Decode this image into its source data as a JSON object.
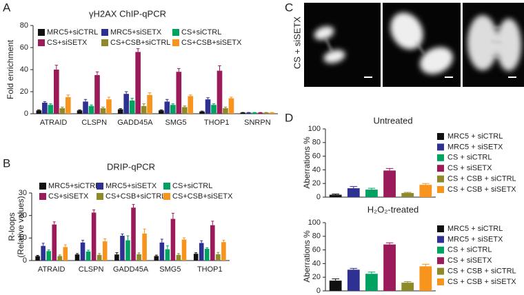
{
  "panels": {
    "a": "A",
    "b": "B",
    "c": "C",
    "d": "D"
  },
  "image_label": "CS + siSETX",
  "chart_data": [
    {
      "type": "bar",
      "title": "γH2AX ChIP-qPCR",
      "ylabel": [
        "Fold enrichment"
      ],
      "categories": [
        "ATRAID",
        "CLSPN",
        "GADD45A",
        "SMG5",
        "THOP1",
        "SNRPN"
      ],
      "ylim": [
        0,
        80
      ],
      "yticks": [
        0,
        20,
        40,
        60,
        80
      ],
      "series": [
        {
          "name": "MRC5+siCTRL",
          "color": "#111111",
          "values": [
            3,
            3,
            4,
            3,
            2,
            1
          ],
          "errors": [
            0.5,
            0.5,
            0.6,
            0.5,
            0.4,
            0.2
          ]
        },
        {
          "name": "MRC5+siSETX",
          "color": "#2e3192",
          "values": [
            10,
            11,
            18,
            11,
            13,
            1
          ],
          "errors": [
            1,
            2,
            2,
            2,
            1.5,
            0.2
          ]
        },
        {
          "name": "CS+siCTRL",
          "color": "#00a261",
          "values": [
            8,
            7,
            12,
            8,
            8,
            1
          ],
          "errors": [
            1,
            1,
            2,
            1,
            1,
            0.2
          ]
        },
        {
          "name": "CS+siSETX",
          "color": "#9b1b5a",
          "values": [
            40,
            35,
            56,
            38,
            39,
            1
          ],
          "errors": [
            4,
            3,
            3,
            3,
            4.5,
            0.2
          ]
        },
        {
          "name": "CS+CSB+siCTRL",
          "color": "#8e8a2a",
          "values": [
            5,
            5,
            7,
            6,
            5,
            1
          ],
          "errors": [
            1,
            1,
            2,
            1,
            1,
            0.2
          ]
        },
        {
          "name": "CS+CSB+siSETX",
          "color": "#f7941d",
          "values": [
            15,
            13,
            17,
            16,
            14,
            1
          ],
          "errors": [
            2,
            2,
            2,
            1,
            1,
            0.2
          ]
        }
      ]
    },
    {
      "type": "bar",
      "title": "DRIP-qPCR",
      "ylabel": [
        "R-loops",
        "(Relative values)"
      ],
      "categories": [
        "ATRAID",
        "CLSPN",
        "GADD45A",
        "SMG5",
        "THOP1"
      ],
      "ylim": [
        0,
        30
      ],
      "yticks": [
        0,
        10,
        20,
        30
      ],
      "series": [
        {
          "name": "MRC5+siCTRL",
          "color": "#111111",
          "values": [
            2,
            2.7,
            2.7,
            2,
            3
          ],
          "errors": [
            0.3,
            0.4,
            0.8,
            0.4,
            0.5
          ]
        },
        {
          "name": "MRC5+siSETX",
          "color": "#2e3192",
          "values": [
            6.5,
            8,
            11,
            8,
            7.8
          ],
          "errors": [
            1.2,
            1,
            0.8,
            1.5,
            1
          ]
        },
        {
          "name": "CS+siCTRL",
          "color": "#00a261",
          "values": [
            4.2,
            4,
            9,
            5,
            5.2
          ],
          "errors": [
            0.5,
            0.6,
            2,
            1.5,
            0.5
          ]
        },
        {
          "name": "CS+siSETX",
          "color": "#9b1b5a",
          "values": [
            16,
            21.3,
            23.5,
            18.5,
            15.7
          ],
          "errors": [
            1.2,
            1.2,
            1.4,
            2.5,
            1.8
          ]
        },
        {
          "name": "CS+CSB+siCTRL",
          "color": "#8e8a2a",
          "values": [
            2,
            2.5,
            2.8,
            2.5,
            2.8
          ],
          "errors": [
            0.5,
            0.6,
            0.6,
            0.6,
            0.8
          ]
        },
        {
          "name": "CS+CSB+siSETX",
          "color": "#f7941d",
          "values": [
            6,
            8.5,
            12,
            9.3,
            8.2
          ],
          "errors": [
            1,
            1.2,
            2,
            0.8,
            0.8
          ]
        }
      ]
    },
    {
      "type": "bar",
      "title": "Untreated",
      "ylabel": [
        "Aberrations %"
      ],
      "categories": [
        null
      ],
      "ylim": [
        0,
        100
      ],
      "yticks": [
        0,
        20,
        40,
        60,
        80,
        100
      ],
      "series": [
        {
          "name": "MRC5 + siCTRL",
          "color": "#111111",
          "values": [
            3.5
          ],
          "errors": [
            1
          ]
        },
        {
          "name": "MRC5 + siSETX",
          "color": "#2e3192",
          "values": [
            13
          ],
          "errors": [
            2.5
          ]
        },
        {
          "name": "CS + siCTRL",
          "color": "#00a261",
          "values": [
            11
          ],
          "errors": [
            2
          ]
        },
        {
          "name": "CS + siSETX",
          "color": "#9b1b5a",
          "values": [
            39
          ],
          "errors": [
            3
          ]
        },
        {
          "name": "CS + CSB + siCTRL",
          "color": "#8e8a2a",
          "values": [
            6
          ],
          "errors": [
            1
          ]
        },
        {
          "name": "CS + CSB + siSETX",
          "color": "#f7941d",
          "values": [
            18
          ],
          "errors": [
            2
          ]
        }
      ]
    },
    {
      "type": "bar",
      "title": "H₂O₂-treated",
      "ylabel": [
        "Aberrations %"
      ],
      "categories": [
        null
      ],
      "ylim": [
        0,
        100
      ],
      "yticks": [
        0,
        20,
        40,
        60,
        80,
        100
      ],
      "series": [
        {
          "name": "MRC5 + siCTRL",
          "color": "#111111",
          "values": [
            15
          ],
          "errors": [
            2.5
          ]
        },
        {
          "name": "MRC5 + siSETX",
          "color": "#2e3192",
          "values": [
            31
          ],
          "errors": [
            2
          ]
        },
        {
          "name": "CS + siCTRL",
          "color": "#00a261",
          "values": [
            25
          ],
          "errors": [
            2.5
          ]
        },
        {
          "name": "CS + siSETX",
          "color": "#9b1b5a",
          "values": [
            68
          ],
          "errors": [
            2.5
          ]
        },
        {
          "name": "CS + CSB + siCTRL",
          "color": "#8e8a2a",
          "values": [
            12
          ],
          "errors": [
            1.5
          ]
        },
        {
          "name": "CS + CSB + siSETX",
          "color": "#f7941d",
          "values": [
            36
          ],
          "errors": [
            3
          ]
        }
      ]
    }
  ]
}
